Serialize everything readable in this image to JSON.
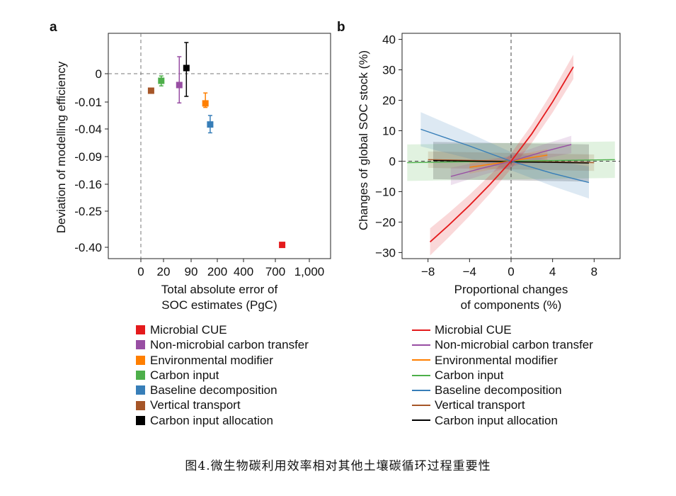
{
  "caption": "图4.微生物碳利用效率相对其他土壤碳循环过程重要性",
  "colors": {
    "microbial_cue": "#e41a1c",
    "non_microbial_carbon_transfer": "#984ea3",
    "environmental_modifier": "#ff7f00",
    "carbon_input": "#4daf4a",
    "baseline_decomposition": "#377eb8",
    "vertical_transport": "#a65628",
    "carbon_input_allocation": "#000000"
  },
  "chart_data": [
    {
      "panel_label": "a",
      "type": "scatter",
      "xlabel_line1": "Total absolute error of",
      "xlabel_line2": "SOC estimates (PgC)",
      "ylabel": "Deviation of modelling efficiency",
      "x_ticks": [
        "0",
        "20",
        "90",
        "200",
        "400",
        "700",
        "1,000"
      ],
      "x_tick_values": [
        0,
        20,
        90,
        200,
        400,
        700,
        1000
      ],
      "y_ticks": [
        "0",
        "-0.01",
        "-0.04",
        "-0.09",
        "-0.16",
        "-0.25",
        "-0.40"
      ],
      "y_tick_values": [
        0,
        -0.01,
        -0.04,
        -0.09,
        -0.16,
        -0.25,
        -0.4
      ],
      "points": [
        {
          "name": "Microbial CUE",
          "color": "#e41a1c",
          "x": 760,
          "y": -0.39,
          "ylo": -0.385,
          "yhi": -0.395
        },
        {
          "name": "Non-microbial carbon transfer",
          "color": "#984ea3",
          "x": 60,
          "y": -0.004,
          "ylo": 0.006,
          "yhi": -0.011
        },
        {
          "name": "Environmental modifier",
          "color": "#ff7f00",
          "x": 150,
          "y": -0.0115,
          "ylo": -0.0068,
          "yhi": -0.016
        },
        {
          "name": "Carbon input",
          "color": "#4daf4a",
          "x": 18,
          "y": -0.0025,
          "ylo": -0.0008,
          "yhi": -0.0043
        },
        {
          "name": "Baseline decomposition",
          "color": "#377eb8",
          "x": 170,
          "y": -0.035,
          "ylo": -0.025,
          "yhi": -0.047
        },
        {
          "name": "Vertical transport",
          "color": "#a65628",
          "x": 9,
          "y": -0.006,
          "ylo": -0.006,
          "yhi": -0.006
        },
        {
          "name": "Carbon input allocation",
          "color": "#000000",
          "x": 78,
          "y": 0.002,
          "ylo": 0.011,
          "yhi": -0.008
        }
      ]
    },
    {
      "panel_label": "b",
      "type": "line",
      "xlabel_line1": "Proportional changes",
      "xlabel_line2": "of components (%)",
      "ylabel": "Changes of global SOC stock (%)",
      "xlim": [
        -10.5,
        10.5
      ],
      "ylim": [
        -32,
        42
      ],
      "x_ticks": [
        "−8",
        "−4",
        "0",
        "4",
        "8"
      ],
      "x_tick_values": [
        -8,
        -4,
        0,
        4,
        8
      ],
      "y_ticks": [
        "−30",
        "−20",
        "−10",
        "0",
        "10",
        "20",
        "30",
        "40"
      ],
      "y_tick_values": [
        -30,
        -20,
        -10,
        0,
        10,
        20,
        30,
        40
      ],
      "series": [
        {
          "name": "Vertical transport",
          "color": "#a65628",
          "x": [
            -8,
            8
          ],
          "values": [
            0.5,
            -0.5
          ],
          "band": 1.5
        },
        {
          "name": "Carbon input",
          "color": "#4daf4a",
          "x": [
            -10,
            10
          ],
          "values": [
            -0.5,
            0.5
          ],
          "band": 3.0
        },
        {
          "name": "Carbon input allocation",
          "color": "#000000",
          "x": [
            -7.5,
            7.5
          ],
          "values": [
            0.2,
            -0.6
          ],
          "band": 3.5
        },
        {
          "name": "Environmental modifier",
          "color": "#ff7f00",
          "x": [
            -4,
            -2,
            0,
            2,
            3.5
          ],
          "values": [
            -2.0,
            -1.0,
            0,
            1.2,
            2.0
          ],
          "band": 1.5
        },
        {
          "name": "Baseline decomposition",
          "color": "#377eb8",
          "x": [
            -8.7,
            -4,
            0,
            4,
            7.5
          ],
          "values": [
            10.5,
            5.0,
            0,
            -4.0,
            -7.0
          ],
          "band": 3.0
        },
        {
          "name": "Non-microbial carbon transfer",
          "color": "#984ea3",
          "x": [
            -5.8,
            -3,
            0,
            3,
            5.8
          ],
          "values": [
            -5.0,
            -2.5,
            0,
            3.0,
            5.5
          ],
          "band": 1.8
        },
        {
          "name": "Microbial CUE",
          "color": "#e41a1c",
          "x": [
            -7.8,
            -6,
            -4,
            -2,
            0,
            2,
            4,
            6
          ],
          "values": [
            -26.5,
            -21.0,
            -14.5,
            -7.5,
            0,
            9.0,
            19.5,
            31.0
          ],
          "band": 2.5
        }
      ]
    }
  ],
  "legend_a": [
    {
      "label": "Microbial CUE",
      "color": "#e41a1c"
    },
    {
      "label": "Non-microbial carbon transfer",
      "color": "#984ea3"
    },
    {
      "label": "Environmental modifier",
      "color": "#ff7f00"
    },
    {
      "label": "Carbon input",
      "color": "#4daf4a"
    },
    {
      "label": "Baseline decomposition",
      "color": "#377eb8"
    },
    {
      "label": "Vertical transport",
      "color": "#a65628"
    },
    {
      "label": "Carbon input allocation",
      "color": "#000000"
    }
  ],
  "legend_b": [
    {
      "label": "Microbial CUE",
      "color": "#e41a1c"
    },
    {
      "label": "Non-microbial carbon transfer",
      "color": "#984ea3"
    },
    {
      "label": "Environmental modifier",
      "color": "#ff7f00"
    },
    {
      "label": "Carbon input",
      "color": "#4daf4a"
    },
    {
      "label": "Baseline decomposition",
      "color": "#377eb8"
    },
    {
      "label": "Vertical transport",
      "color": "#a65628"
    },
    {
      "label": "Carbon input allocation",
      "color": "#000000"
    }
  ]
}
